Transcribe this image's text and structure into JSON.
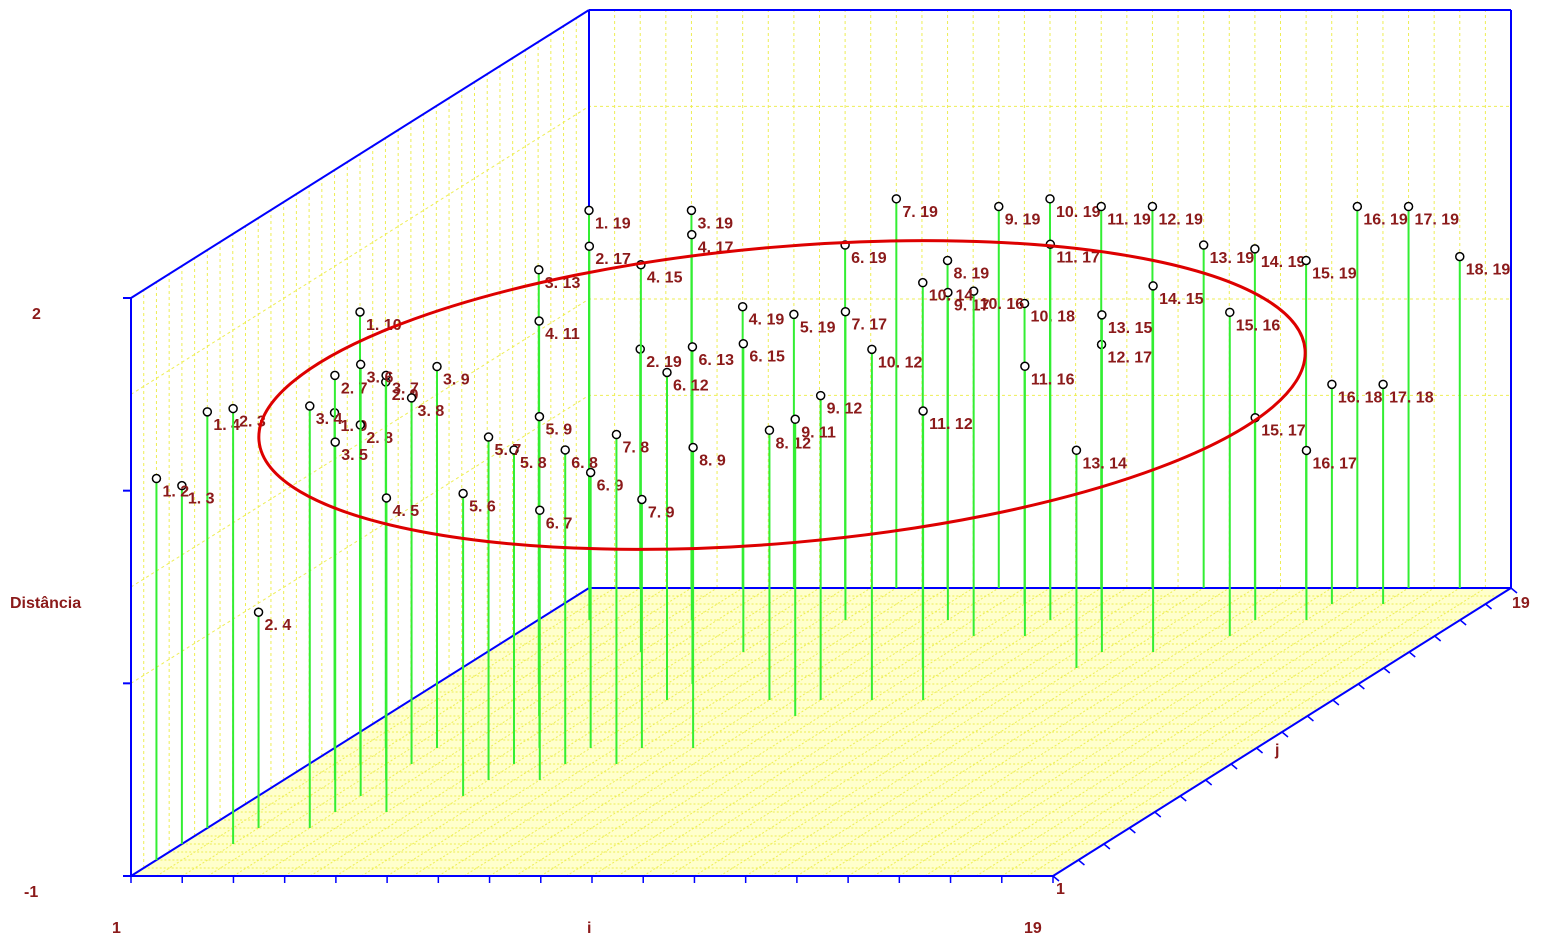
{
  "chart_data": {
    "type": "scatter",
    "title": "",
    "zlabel": "Distância",
    "xlabel": "i",
    "ylabel": "j",
    "x_range": [
      1,
      19
    ],
    "y_range": [
      1,
      19
    ],
    "zlim": [
      -1,
      2
    ],
    "axis_ticks": {
      "x_min": "1",
      "x_max": "19",
      "y_min": "1",
      "y_max": "19",
      "z_min": "-1",
      "z_max": "2"
    },
    "grid": true,
    "annotations": [
      "ellipse highlighting central cluster"
    ],
    "colors": {
      "stem": "#33ee33",
      "frame": "#0000ff",
      "grid": "#eeee55",
      "label": "#8b1a1a",
      "ellipse": "#dd0000",
      "floor": "#ffffcc"
    },
    "points": [
      {
        "label": "1. 19",
        "i": 1,
        "j": 19,
        "d": 0.96
      },
      {
        "label": "3. 19",
        "i": 3,
        "j": 19,
        "d": 0.96
      },
      {
        "label": "7. 19",
        "i": 7,
        "j": 19,
        "d": 1.02
      },
      {
        "label": "9. 19",
        "i": 9,
        "j": 19,
        "d": 0.98
      },
      {
        "label": "10. 19",
        "i": 10,
        "j": 19,
        "d": 1.02
      },
      {
        "label": "11. 19",
        "i": 11,
        "j": 19,
        "d": 0.98
      },
      {
        "label": "12. 19",
        "i": 12,
        "j": 19,
        "d": 0.98
      },
      {
        "label": "16. 19",
        "i": 16,
        "j": 19,
        "d": 0.98
      },
      {
        "label": "17. 19",
        "i": 17,
        "j": 19,
        "d": 0.98
      },
      {
        "label": "13. 19",
        "i": 13,
        "j": 19,
        "d": 0.78
      },
      {
        "label": "14. 19",
        "i": 14,
        "j": 19,
        "d": 0.76
      },
      {
        "label": "15. 19",
        "i": 15,
        "j": 19,
        "d": 0.7
      },
      {
        "label": "18. 19",
        "i": 18,
        "j": 19,
        "d": 0.72
      },
      {
        "label": "6. 19",
        "i": 6,
        "j": 19,
        "d": 0.78
      },
      {
        "label": "8. 19",
        "i": 8,
        "j": 19,
        "d": 0.7
      },
      {
        "label": "10. 18",
        "i": 10,
        "j": 18,
        "d": 0.56
      },
      {
        "label": "16. 18",
        "i": 16,
        "j": 18,
        "d": 0.14
      },
      {
        "label": "17. 18",
        "i": 17,
        "j": 18,
        "d": 0.14
      },
      {
        "label": "15. 17",
        "i": 15,
        "j": 17,
        "d": 0.05
      },
      {
        "label": "16. 17",
        "i": 16,
        "j": 17,
        "d": -0.12
      },
      {
        "label": "13. 14",
        "i": 13,
        "j": 14,
        "d": 0.13
      },
      {
        "label": "11. 12",
        "i": 11,
        "j": 12,
        "d": 0.5
      },
      {
        "label": "9. 11",
        "i": 9,
        "j": 11,
        "d": 0.54
      },
      {
        "label": "9. 12",
        "i": 9,
        "j": 12,
        "d": 0.58
      },
      {
        "label": "1. 2",
        "i": 1,
        "j": 2,
        "d": 0.98
      },
      {
        "label": "1. 3",
        "i": 1,
        "j": 3,
        "d": 0.86
      },
      {
        "label": "1. 4",
        "i": 1,
        "j": 4,
        "d": 1.16
      },
      {
        "label": "2. 3",
        "i": 2,
        "j": 3,
        "d": 1.26
      },
      {
        "label": "2. 4",
        "i": 2,
        "j": 4,
        "d": 0.12
      },
      {
        "label": "1. 9",
        "i": 1,
        "j": 9,
        "d": 0.74
      },
      {
        "label": "1. 10",
        "i": 1,
        "j": 10,
        "d": 1.18
      },
      {
        "label": "3. 4",
        "i": 3,
        "j": 4,
        "d": 1.19
      },
      {
        "label": "3. 5",
        "i": 3,
        "j": 5,
        "d": 0.92
      },
      {
        "label": "3. 6",
        "i": 3,
        "j": 6,
        "d": 1.24
      },
      {
        "label": "4. 5",
        "i": 4,
        "j": 5,
        "d": 0.63
      },
      {
        "label": "5. 6",
        "i": 5,
        "j": 6,
        "d": 0.57
      },
      {
        "label": "6. 7",
        "i": 6,
        "j": 7,
        "d": 0.4
      },
      {
        "label": "6. 8",
        "i": 6,
        "j": 8,
        "d": 0.63
      },
      {
        "label": "7. 8",
        "i": 7,
        "j": 8,
        "d": 0.71
      },
      {
        "label": "8. 9",
        "i": 8,
        "j": 9,
        "d": 0.56
      },
      {
        "label": "4. 15",
        "i": 4,
        "j": 15,
        "d": 1.01
      },
      {
        "label": "5. 19",
        "i": 5,
        "j": 19,
        "d": 0.42
      },
      {
        "label": "4. 19",
        "i": 4,
        "j": 19,
        "d": 0.46
      },
      {
        "label": "2. 17",
        "i": 2,
        "j": 17,
        "d": 0.94
      },
      {
        "label": "4. 17",
        "i": 4,
        "j": 17,
        "d": 1.0
      },
      {
        "label": "2. 19",
        "i": 2,
        "j": 19,
        "d": 0.24
      },
      {
        "label": "3. 13",
        "i": 3,
        "j": 13,
        "d": 1.15
      },
      {
        "label": "6. 15",
        "i": 6,
        "j": 15,
        "d": 0.6
      },
      {
        "label": "6. 12",
        "i": 6,
        "j": 12,
        "d": 0.7
      },
      {
        "label": "7. 17",
        "i": 7,
        "j": 17,
        "d": 0.6
      },
      {
        "label": "10. 14",
        "i": 10,
        "j": 14,
        "d": 1.0
      },
      {
        "label": "11. 16",
        "i": 11,
        "j": 16,
        "d": 0.4
      },
      {
        "label": "12. 17",
        "i": 12,
        "j": 17,
        "d": 0.43
      },
      {
        "label": "13. 15",
        "i": 13,
        "j": 15,
        "d": 0.75
      },
      {
        "label": "14. 15",
        "i": 14,
        "j": 15,
        "d": 0.9
      },
      {
        "label": "15. 16",
        "i": 15,
        "j": 16,
        "d": 0.68
      },
      {
        "label": "2. 7",
        "i": 2,
        "j": 7,
        "d": 1.1
      },
      {
        "label": "2. 8",
        "i": 2,
        "j": 8,
        "d": 0.76
      },
      {
        "label": "2. 9",
        "i": 2,
        "j": 9,
        "d": 0.9
      },
      {
        "label": "3. 7",
        "i": 3,
        "j": 7,
        "d": 1.1
      },
      {
        "label": "3. 9",
        "i": 3,
        "j": 9,
        "d": 0.98
      },
      {
        "label": "3. 8",
        "i": 3,
        "j": 8,
        "d": 0.9
      },
      {
        "label": "5. 7",
        "i": 5,
        "j": 7,
        "d": 0.78
      },
      {
        "label": "5. 9",
        "i": 5,
        "j": 9,
        "d": 0.72
      },
      {
        "label": "4. 11",
        "i": 4,
        "j": 11,
        "d": 1.05
      },
      {
        "label": "5. 8",
        "i": 5,
        "j": 8,
        "d": 0.63
      },
      {
        "label": "8. 12",
        "i": 8,
        "j": 12,
        "d": 0.4
      },
      {
        "label": "10. 12",
        "i": 10,
        "j": 12,
        "d": 0.82
      },
      {
        "label": "9. 17",
        "i": 9,
        "j": 17,
        "d": 0.7
      },
      {
        "label": "10. 16",
        "i": 10,
        "j": 16,
        "d": 0.79
      },
      {
        "label": "11. 17",
        "i": 11,
        "j": 17,
        "d": 0.95
      },
      {
        "label": "6. 9",
        "i": 6,
        "j": 9,
        "d": 0.43
      },
      {
        "label": "7. 9",
        "i": 7,
        "j": 9,
        "d": 0.29
      },
      {
        "label": "6. 13",
        "i": 6,
        "j": 13,
        "d": 0.75
      }
    ]
  },
  "labels": {
    "z_max": "2",
    "z_min": "-1",
    "z_title": "Distância",
    "x_min": "1",
    "x_max": "19",
    "x_title": "i",
    "y_min": "1",
    "y_max": "19",
    "y_title": "j"
  }
}
